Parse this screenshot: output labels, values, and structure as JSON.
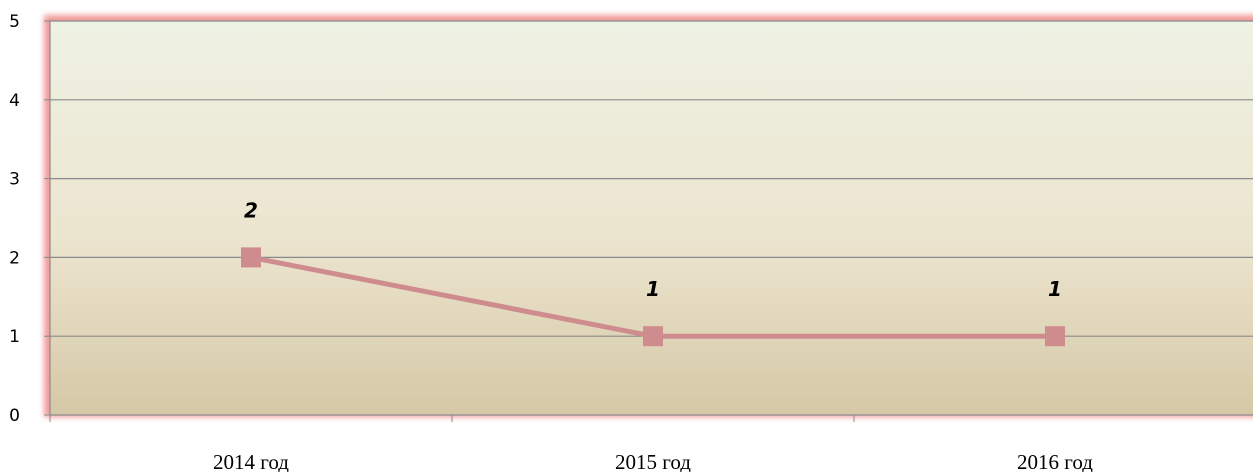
{
  "chart_data": {
    "type": "line",
    "categories": [
      "2014 год",
      "2015 год",
      "2016 год"
    ],
    "series": [
      {
        "values": [
          2,
          1,
          1
        ],
        "color": "#cf8c8f"
      }
    ],
    "data_labels": [
      "2",
      "1",
      "1"
    ],
    "y_ticks": [
      "0",
      "1",
      "2",
      "3",
      "4",
      "5"
    ],
    "ylim": [
      0,
      5
    ],
    "grid": true,
    "legend": "none",
    "colors": {
      "plot_top": "#eef2e4",
      "plot_bottom": "#d5c8a6",
      "grid": "#8a8a8a",
      "glow": "#f19a9a"
    }
  }
}
